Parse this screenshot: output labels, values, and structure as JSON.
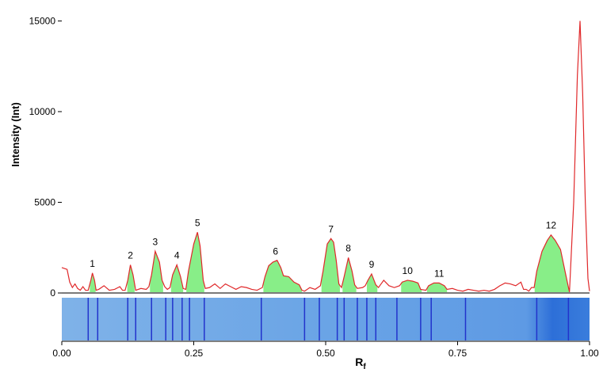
{
  "chart_data": {
    "type": "area",
    "xlabel": "R",
    "xlabel_subscript": "f",
    "ylabel": "Intensity (Int)",
    "xlim": [
      0,
      1
    ],
    "ylim": [
      0,
      15500
    ],
    "x_ticks": [
      {
        "value": 0.0,
        "label": "0.00"
      },
      {
        "value": 0.25,
        "label": "0.25"
      },
      {
        "value": 0.5,
        "label": "0.50"
      },
      {
        "value": 0.75,
        "label": "0.75"
      },
      {
        "value": 1.0,
        "label": "1.00"
      }
    ],
    "y_ticks": [
      {
        "value": 0,
        "label": "0"
      },
      {
        "value": 5000,
        "label": "5000"
      },
      {
        "value": 10000,
        "label": "10000"
      },
      {
        "value": 15000,
        "label": "15000"
      }
    ],
    "grid": false,
    "line_color": "#e0282a",
    "fill_color": "#88ee88",
    "series": [
      {
        "points": [
          [
            0.0,
            1400
          ],
          [
            0.01,
            1300
          ],
          [
            0.015,
            600
          ],
          [
            0.02,
            300
          ],
          [
            0.025,
            500
          ],
          [
            0.03,
            250
          ],
          [
            0.035,
            150
          ],
          [
            0.04,
            350
          ],
          [
            0.045,
            150
          ],
          [
            0.05,
            150
          ],
          [
            0.055,
            700
          ],
          [
            0.058,
            1100
          ],
          [
            0.062,
            700
          ],
          [
            0.065,
            150
          ],
          [
            0.07,
            200
          ],
          [
            0.08,
            400
          ],
          [
            0.09,
            150
          ],
          [
            0.1,
            200
          ],
          [
            0.11,
            350
          ],
          [
            0.115,
            150
          ],
          [
            0.12,
            150
          ],
          [
            0.125,
            700
          ],
          [
            0.13,
            1550
          ],
          [
            0.135,
            1000
          ],
          [
            0.14,
            150
          ],
          [
            0.15,
            250
          ],
          [
            0.16,
            200
          ],
          [
            0.165,
            350
          ],
          [
            0.17,
            1000
          ],
          [
            0.177,
            2300
          ],
          [
            0.185,
            1700
          ],
          [
            0.19,
            700
          ],
          [
            0.195,
            350
          ],
          [
            0.2,
            200
          ],
          [
            0.205,
            300
          ],
          [
            0.21,
            1000
          ],
          [
            0.218,
            1550
          ],
          [
            0.225,
            900
          ],
          [
            0.23,
            250
          ],
          [
            0.235,
            200
          ],
          [
            0.24,
            1200
          ],
          [
            0.25,
            2700
          ],
          [
            0.257,
            3350
          ],
          [
            0.262,
            2600
          ],
          [
            0.268,
            700
          ],
          [
            0.272,
            250
          ],
          [
            0.28,
            300
          ],
          [
            0.29,
            500
          ],
          [
            0.3,
            250
          ],
          [
            0.31,
            500
          ],
          [
            0.32,
            350
          ],
          [
            0.33,
            200
          ],
          [
            0.34,
            350
          ],
          [
            0.35,
            300
          ],
          [
            0.36,
            200
          ],
          [
            0.37,
            150
          ],
          [
            0.38,
            300
          ],
          [
            0.385,
            900
          ],
          [
            0.392,
            1500
          ],
          [
            0.4,
            1700
          ],
          [
            0.408,
            1800
          ],
          [
            0.415,
            1400
          ],
          [
            0.42,
            950
          ],
          [
            0.43,
            900
          ],
          [
            0.44,
            600
          ],
          [
            0.45,
            450
          ],
          [
            0.455,
            150
          ],
          [
            0.46,
            100
          ],
          [
            0.47,
            300
          ],
          [
            0.48,
            200
          ],
          [
            0.49,
            400
          ],
          [
            0.495,
            1200
          ],
          [
            0.503,
            2700
          ],
          [
            0.51,
            3000
          ],
          [
            0.515,
            2800
          ],
          [
            0.52,
            1800
          ],
          [
            0.525,
            500
          ],
          [
            0.53,
            300
          ],
          [
            0.535,
            900
          ],
          [
            0.543,
            1950
          ],
          [
            0.55,
            1200
          ],
          [
            0.555,
            450
          ],
          [
            0.56,
            250
          ],
          [
            0.57,
            300
          ],
          [
            0.575,
            400
          ],
          [
            0.58,
            700
          ],
          [
            0.587,
            1050
          ],
          [
            0.595,
            450
          ],
          [
            0.6,
            300
          ],
          [
            0.605,
            500
          ],
          [
            0.61,
            700
          ],
          [
            0.62,
            400
          ],
          [
            0.63,
            300
          ],
          [
            0.64,
            400
          ],
          [
            0.645,
            600
          ],
          [
            0.655,
            700
          ],
          [
            0.665,
            650
          ],
          [
            0.675,
            550
          ],
          [
            0.68,
            200
          ],
          [
            0.69,
            150
          ],
          [
            0.695,
            400
          ],
          [
            0.705,
            550
          ],
          [
            0.715,
            550
          ],
          [
            0.725,
            400
          ],
          [
            0.73,
            200
          ],
          [
            0.74,
            250
          ],
          [
            0.75,
            150
          ],
          [
            0.76,
            100
          ],
          [
            0.77,
            200
          ],
          [
            0.78,
            150
          ],
          [
            0.79,
            100
          ],
          [
            0.8,
            150
          ],
          [
            0.81,
            100
          ],
          [
            0.82,
            200
          ],
          [
            0.83,
            400
          ],
          [
            0.84,
            550
          ],
          [
            0.85,
            500
          ],
          [
            0.86,
            400
          ],
          [
            0.87,
            600
          ],
          [
            0.875,
            200
          ],
          [
            0.88,
            200
          ],
          [
            0.885,
            100
          ],
          [
            0.89,
            300
          ],
          [
            0.895,
            300
          ],
          [
            0.9,
            1200
          ],
          [
            0.91,
            2300
          ],
          [
            0.92,
            2900
          ],
          [
            0.927,
            3200
          ],
          [
            0.935,
            2900
          ],
          [
            0.945,
            2400
          ],
          [
            0.955,
            1000
          ],
          [
            0.962,
            50
          ],
          [
            0.97,
            5000
          ],
          [
            0.977,
            12000
          ],
          [
            0.982,
            15000
          ],
          [
            0.987,
            11000
          ],
          [
            0.992,
            5000
          ],
          [
            0.997,
            800
          ],
          [
            1.0,
            100
          ]
        ]
      }
    ],
    "peaks": [
      {
        "label": "1",
        "x": 0.058,
        "from": 0.053,
        "to": 0.064
      },
      {
        "label": "2",
        "x": 0.13,
        "from": 0.124,
        "to": 0.138
      },
      {
        "label": "3",
        "x": 0.177,
        "from": 0.167,
        "to": 0.192
      },
      {
        "label": "4",
        "x": 0.218,
        "from": 0.207,
        "to": 0.23
      },
      {
        "label": "5",
        "x": 0.257,
        "from": 0.236,
        "to": 0.27
      },
      {
        "label": "6",
        "x": 0.405,
        "from": 0.382,
        "to": 0.455
      },
      {
        "label": "7",
        "x": 0.51,
        "from": 0.492,
        "to": 0.527
      },
      {
        "label": "8",
        "x": 0.543,
        "from": 0.532,
        "to": 0.558
      },
      {
        "label": "9",
        "x": 0.587,
        "from": 0.578,
        "to": 0.598
      },
      {
        "label": "10",
        "x": 0.655,
        "from": 0.643,
        "to": 0.682
      },
      {
        "label": "11",
        "x": 0.715,
        "from": 0.692,
        "to": 0.73
      },
      {
        "label": "12",
        "x": 0.927,
        "from": 0.896,
        "to": 0.962
      }
    ],
    "lane": {
      "band_positions": [
        0.05,
        0.068,
        0.125,
        0.14,
        0.17,
        0.197,
        0.21,
        0.228,
        0.242,
        0.27,
        0.378,
        0.46,
        0.488,
        0.522,
        0.535,
        0.56,
        0.578,
        0.595,
        0.635,
        0.68,
        0.7,
        0.765,
        0.9,
        0.96
      ],
      "band_color": "#2233cc"
    }
  }
}
